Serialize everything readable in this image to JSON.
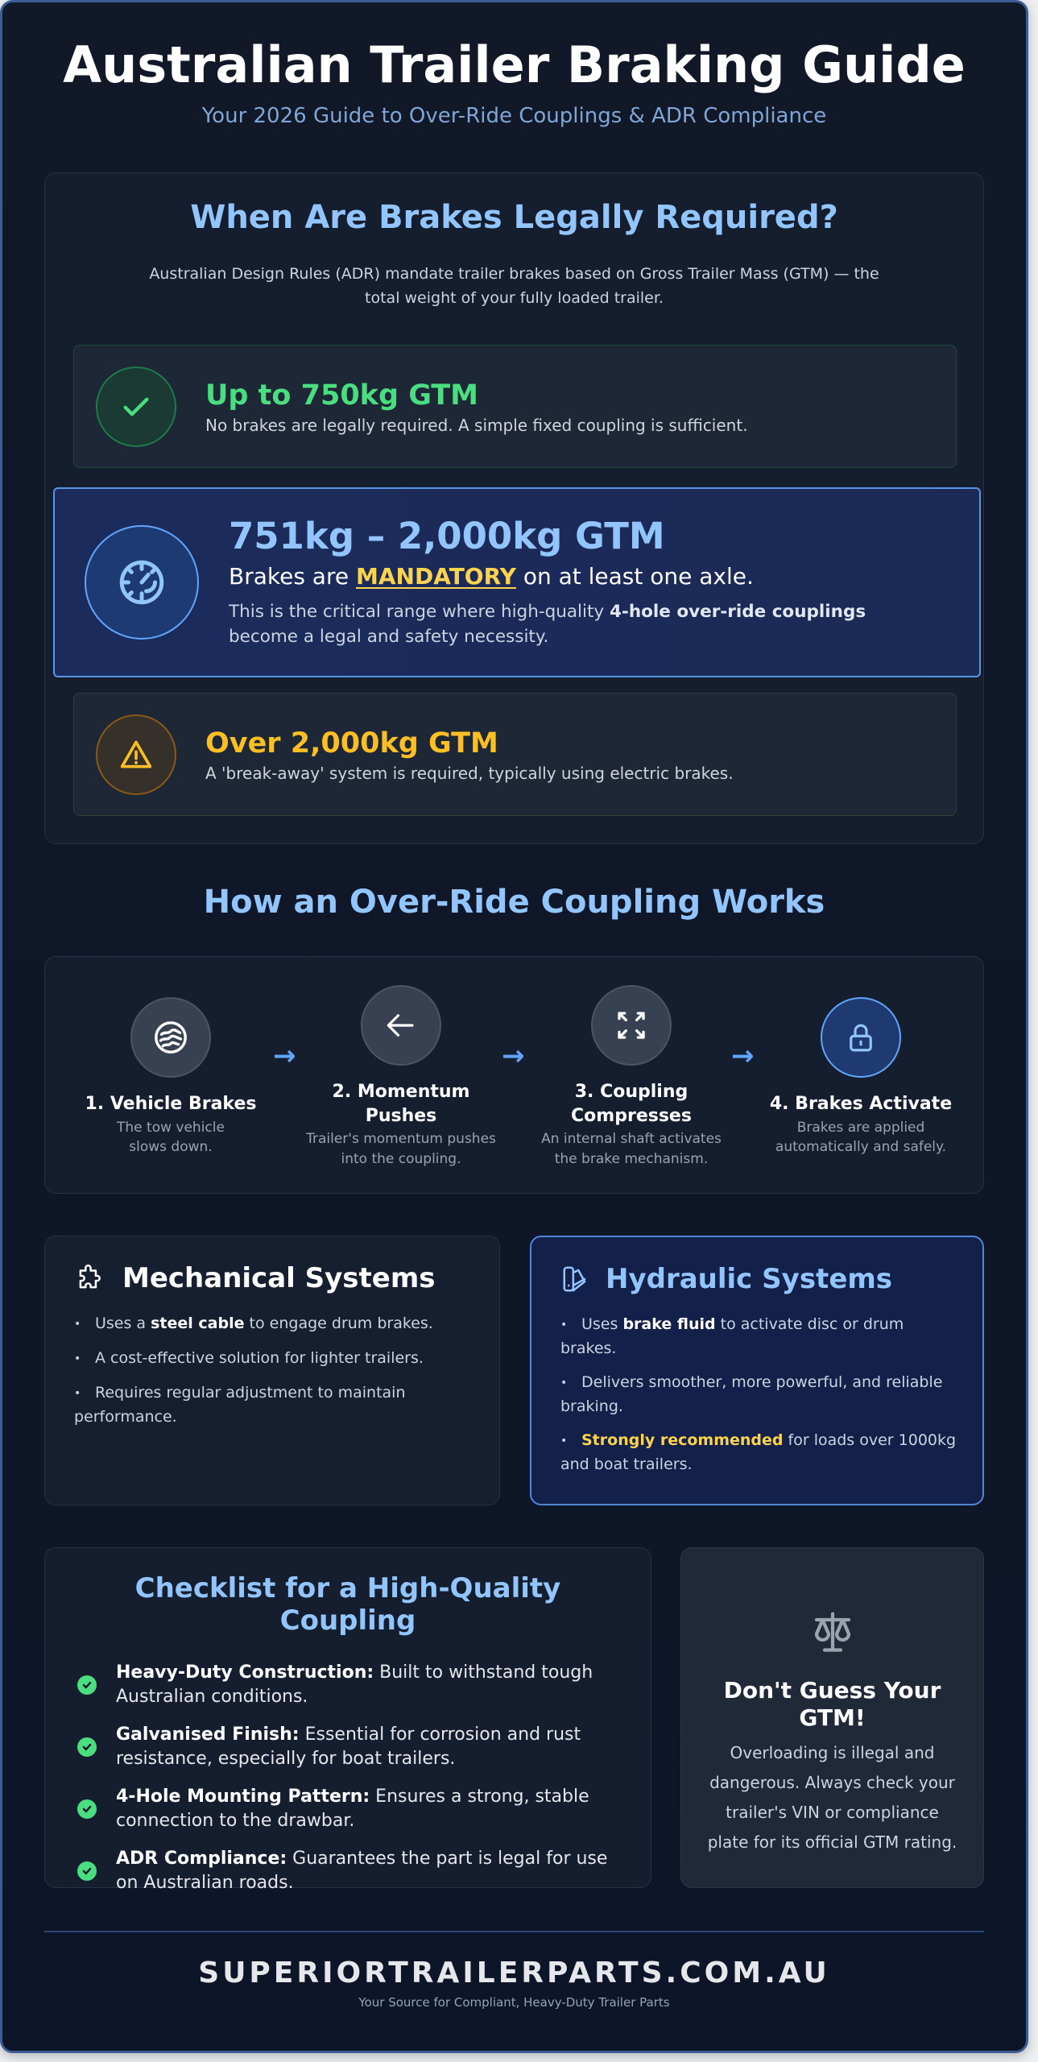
{
  "header": {
    "title": "Australian Trailer Braking Guide",
    "subtitle": "Your 2026 Guide to Over-Ride Couplings & ADR Compliance"
  },
  "legal": {
    "heading": "When Are Brakes Legally Required?",
    "intro": "Australian Design Rules (ADR) mandate trailer brakes based on Gross Trailer Mass (GTM) — the total weight of your fully loaded trailer.",
    "tiers": [
      {
        "title": "Up to 750kg GTM",
        "desc": "No brakes are legally required. A simple fixed coupling is sufficient.",
        "icon": "check-icon",
        "color": "#4ade80"
      },
      {
        "title": "751kg – 2,000kg GTM",
        "line_pre": "Brakes are ",
        "line_em": "MANDATORY",
        "line_post": " on at least one axle.",
        "desc_pre": "This is the critical range where high-quality ",
        "desc_bold": "4-hole over-ride couplings",
        "desc_post": " become a legal and safety necessity.",
        "icon": "gauge-icon",
        "color": "#93c5fd"
      },
      {
        "title": "Over 2,000kg GTM",
        "desc": "A 'break-away' system is required, typically using electric brakes.",
        "icon": "warning-icon",
        "color": "#fbbf24"
      }
    ]
  },
  "how": {
    "heading": "How an Over-Ride Coupling Works",
    "steps": [
      {
        "title": "1. Vehicle Brakes",
        "desc": "The tow vehicle slows down.",
        "icon": "brake-disc-icon"
      },
      {
        "title": "2. Momentum Pushes",
        "desc": "Trailer's momentum pushes into the coupling.",
        "icon": "arrow-left-icon"
      },
      {
        "title": "3. Coupling Compresses",
        "desc": "An internal shaft activates the brake mechanism.",
        "icon": "compress-icon"
      },
      {
        "title": "4. Brakes Activate",
        "desc": "Brakes are applied automatically and safely.",
        "icon": "lock-icon"
      }
    ],
    "arrow": "→"
  },
  "systems": {
    "mechanical": {
      "title": "Mechanical Systems",
      "icon": "puzzle-icon",
      "items": [
        {
          "pre": "Uses a ",
          "bold": "steel cable",
          "post": " to engage drum brakes."
        },
        {
          "pre": "A cost-effective solution for lighter trailers.",
          "bold": "",
          "post": ""
        },
        {
          "pre": "Requires regular adjustment to maintain performance.",
          "bold": "",
          "post": ""
        }
      ]
    },
    "hydraulic": {
      "title": "Hydraulic Systems",
      "icon": "fluid-icon",
      "items": [
        {
          "pre": "Uses ",
          "bold": "brake fluid",
          "post": " to activate disc or drum brakes."
        },
        {
          "pre": "Delivers smoother, more powerful, and reliable braking.",
          "bold": "",
          "post": ""
        },
        {
          "pre": "",
          "bold": "Strongly recommended",
          "post": " for loads over 1000kg and boat trailers."
        }
      ]
    }
  },
  "checklist": {
    "heading": "Checklist for a High-Quality Coupling",
    "items": [
      {
        "label": "Heavy-Duty Construction:",
        "text": " Built to withstand tough Australian conditions."
      },
      {
        "label": "Galvanised Finish:",
        "text": " Essential for corrosion and rust resistance, especially for boat trailers."
      },
      {
        "label": "4-Hole Mounting Pattern:",
        "text": " Ensures a strong, stable connection to the drawbar."
      },
      {
        "label": "ADR Compliance:",
        "text": " Guarantees the part is legal for use on Australian roads."
      }
    ]
  },
  "gtm": {
    "title": "Don't Guess Your GTM!",
    "desc": "Overloading is illegal and dangerous. Always check your trailer's VIN or compliance plate for its official GTM rating.",
    "icon": "scale-icon"
  },
  "footer": {
    "brand": "SUPERIORTRAILERPARTS.COM.AU",
    "tagline": "Your Source for Compliant, Heavy-Duty Trailer Parts"
  },
  "colors": {
    "accent": "#60a5fa",
    "heading": "#93c5fd",
    "success": "#4ade80",
    "warning": "#fbbf24",
    "background": "#0f172a"
  }
}
